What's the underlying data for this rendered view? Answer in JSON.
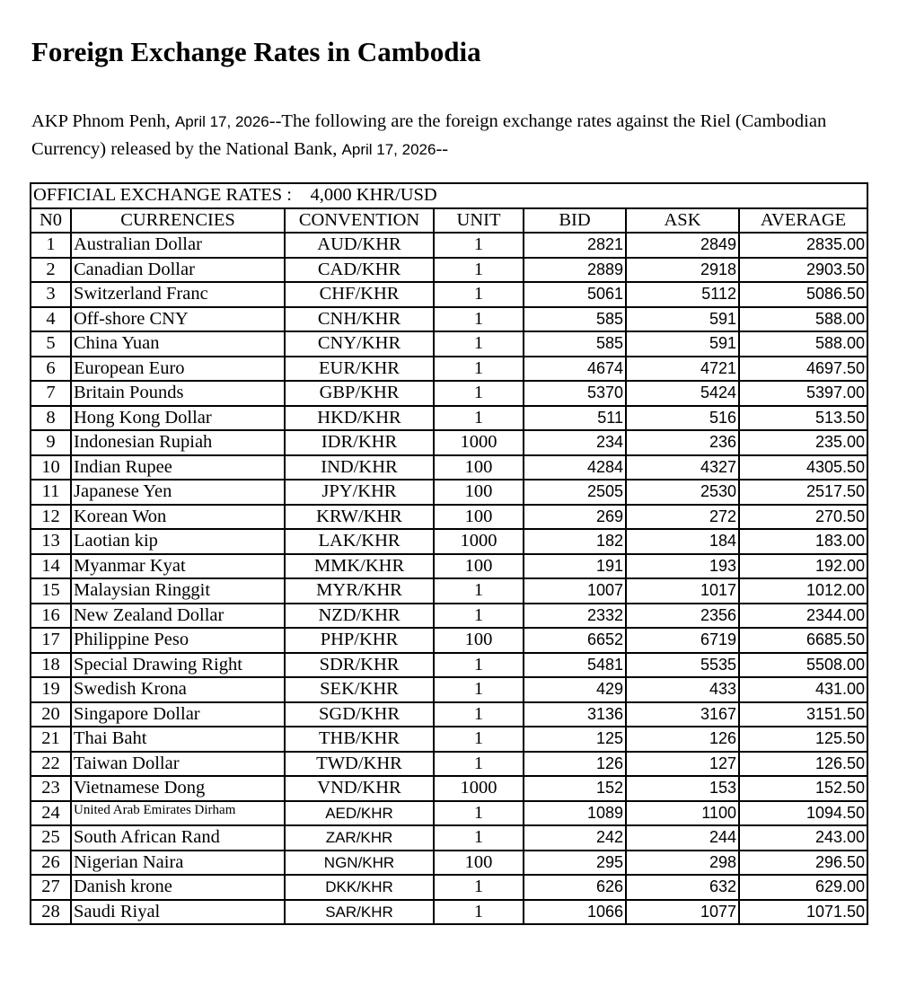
{
  "title": "Foreign Exchange Rates in Cambodia",
  "intro": {
    "part1": "AKP Phnom Penh, ",
    "date1": "April 17, 2026",
    "part2": "--The following are the foreign exchange rates against the Riel (Cambodian Currency) released by the National Bank, ",
    "date2": "April 17, 2026",
    "part3": "--"
  },
  "table": {
    "banner": "OFFICIAL EXCHANGE RATES :    4,000 KHR/USD",
    "headers": [
      "N0",
      "CURRENCIES",
      "CONVENTION",
      "UNIT",
      "BID",
      "ASK",
      "AVERAGE"
    ],
    "rows": [
      [
        "1",
        "Australian Dollar",
        "AUD/KHR",
        "1",
        "2821",
        "2849",
        "2835.00"
      ],
      [
        "2",
        "Canadian Dollar",
        "CAD/KHR",
        "1",
        "2889",
        "2918",
        "2903.50"
      ],
      [
        "3",
        "Switzerland Franc",
        "CHF/KHR",
        "1",
        "5061",
        "5112",
        "5086.50"
      ],
      [
        "4",
        "Off-shore CNY",
        "CNH/KHR",
        "1",
        "585",
        "591",
        "588.00"
      ],
      [
        "5",
        "China Yuan",
        "CNY/KHR",
        "1",
        "585",
        "591",
        "588.00"
      ],
      [
        "6",
        "European Euro",
        "EUR/KHR",
        "1",
        "4674",
        "4721",
        "4697.50"
      ],
      [
        "7",
        "Britain Pounds",
        "GBP/KHR",
        "1",
        "5370",
        "5424",
        "5397.00"
      ],
      [
        "8",
        "Hong Kong Dollar",
        "HKD/KHR",
        "1",
        "511",
        "516",
        "513.50"
      ],
      [
        "9",
        "Indonesian Rupiah",
        "IDR/KHR",
        "1000",
        "234",
        "236",
        "235.00"
      ],
      [
        "10",
        "Indian Rupee",
        "IND/KHR",
        "100",
        "4284",
        "4327",
        "4305.50"
      ],
      [
        "11",
        "Japanese Yen",
        "JPY/KHR",
        "100",
        "2505",
        "2530",
        "2517.50"
      ],
      [
        "12",
        "Korean Won",
        "KRW/KHR",
        "100",
        "269",
        "272",
        "270.50"
      ],
      [
        "13",
        "Laotian kip",
        "LAK/KHR",
        "1000",
        "182",
        "184",
        "183.00"
      ],
      [
        "14",
        "Myanmar Kyat",
        "MMK/KHR",
        "100",
        "191",
        "193",
        "192.00"
      ],
      [
        "15",
        "Malaysian Ringgit",
        "MYR/KHR",
        "1",
        "1007",
        "1017",
        "1012.00"
      ],
      [
        "16",
        "New Zealand Dollar",
        "NZD/KHR",
        "1",
        "2332",
        "2356",
        "2344.00"
      ],
      [
        "17",
        "Philippine Peso",
        "PHP/KHR",
        "100",
        "6652",
        "6719",
        "6685.50"
      ],
      [
        "18",
        "Special Drawing Right",
        "SDR/KHR",
        "1",
        "5481",
        "5535",
        "5508.00"
      ],
      [
        "19",
        "Swedish Krona",
        "SEK/KHR",
        "1",
        "429",
        "433",
        "431.00"
      ],
      [
        "20",
        "Singapore Dollar",
        "SGD/KHR",
        "1",
        "3136",
        "3167",
        "3151.50"
      ],
      [
        "21",
        "Thai Baht",
        "THB/KHR",
        "1",
        "125",
        "126",
        "125.50"
      ],
      [
        "22",
        "Taiwan Dollar",
        "TWD/KHR",
        "1",
        "126",
        "127",
        "126.50"
      ],
      [
        "23",
        "Vietnamese Dong",
        "VND/KHR",
        "1000",
        "152",
        "153",
        "152.50"
      ],
      [
        "24",
        "United Arab Emirates Dirham",
        "AED/KHR",
        "1",
        "1089",
        "1100",
        "1094.50"
      ],
      [
        "25",
        "South African Rand",
        "ZAR/KHR",
        "1",
        "242",
        "244",
        "243.00"
      ],
      [
        "26",
        "Nigerian Naira",
        "NGN/KHR",
        "100",
        "295",
        "298",
        "296.50"
      ],
      [
        "27",
        "Danish krone",
        "DKK/KHR",
        "1",
        "626",
        "632",
        "629.00"
      ],
      [
        "28",
        "Saudi Riyal",
        "SAR/KHR",
        "1",
        "1066",
        "1077",
        "1071.50"
      ]
    ]
  }
}
